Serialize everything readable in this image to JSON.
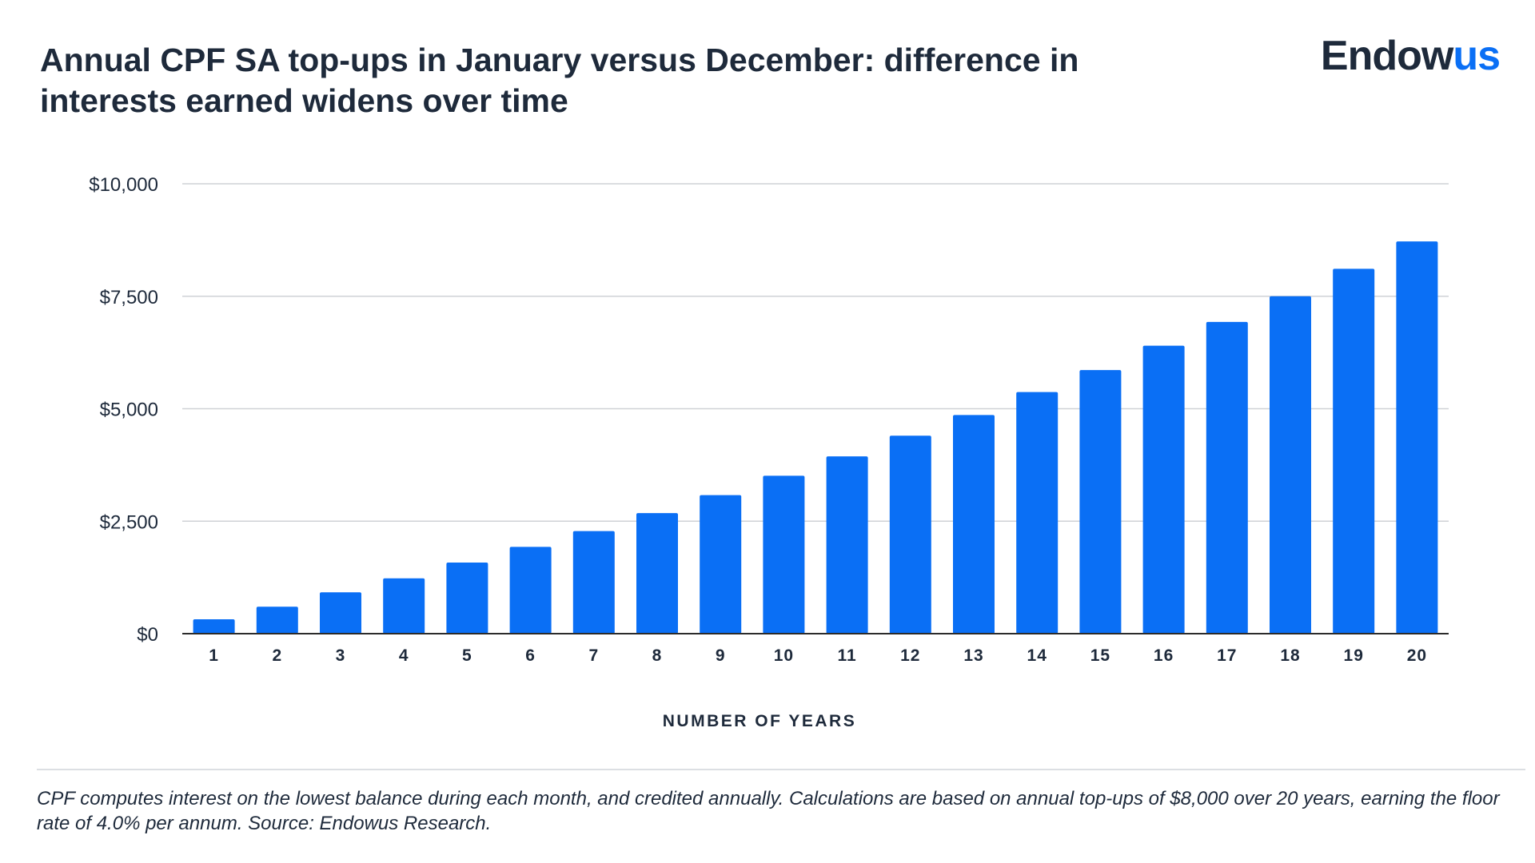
{
  "header": {
    "title": "Annual CPF SA top-ups in January versus December: difference in interests earned widens over time",
    "logo_text_main": "Endow",
    "logo_text_accent": "us"
  },
  "colors": {
    "bar": "#0a6ff5",
    "brand_accent": "#0a6ff5",
    "text": "#1e2a3b",
    "grid": "#cfd2d6"
  },
  "chart_data": {
    "type": "bar",
    "title": "Annual CPF SA top-ups in January versus December: difference in interests earned widens over time",
    "xlabel": "NUMBER OF YEARS",
    "ylabel": "",
    "categories": [
      "1",
      "2",
      "3",
      "4",
      "5",
      "6",
      "7",
      "8",
      "9",
      "10",
      "11",
      "12",
      "13",
      "14",
      "15",
      "16",
      "17",
      "18",
      "19",
      "20"
    ],
    "values": [
      320,
      600,
      920,
      1230,
      1580,
      1930,
      2280,
      2680,
      3080,
      3510,
      3940,
      4400,
      4860,
      5370,
      5860,
      6400,
      6930,
      7500,
      8110,
      8720
    ],
    "ylim": [
      0,
      10000
    ],
    "yticks": [
      0,
      2500,
      5000,
      7500,
      10000
    ],
    "ytick_labels": [
      "$0",
      "$2,500",
      "$5,000",
      "$7,500",
      "$10,000"
    ],
    "grid": true,
    "legend": "none"
  },
  "footnote": "CPF computes interest on the lowest balance during each month, and credited annually. Calculations are based on annual top-ups of $8,000 over 20 years, earning the floor rate of 4.0% per annum. Source: Endowus Research."
}
